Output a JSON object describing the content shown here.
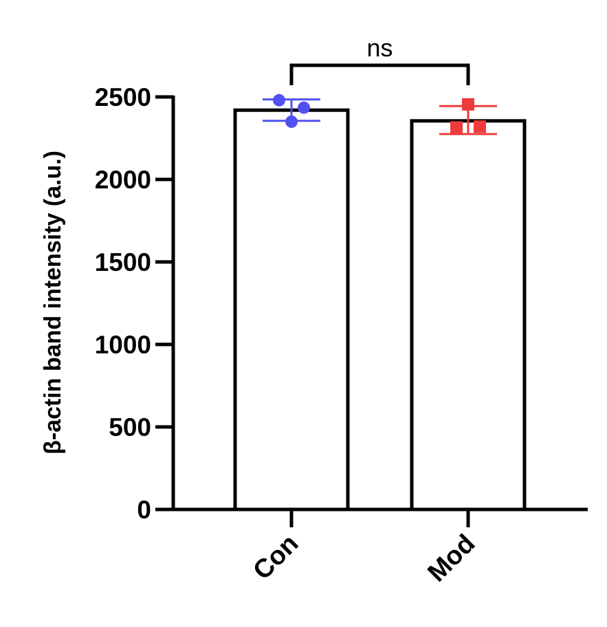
{
  "chart_data": {
    "type": "bar",
    "categories": [
      "Con",
      "Mod"
    ],
    "values": [
      2420,
      2355
    ],
    "error": [
      [
        2355,
        2485
      ],
      [
        2275,
        2445
      ]
    ],
    "points": [
      [
        2480,
        2350,
        2435
      ],
      [
        2455,
        2315,
        2320
      ]
    ],
    "point_colors": [
      "#5151F0",
      "#EE3B3B"
    ],
    "point_shapes": [
      "circle",
      "square"
    ],
    "ylabel": "β-actin band intensity (a.u.)",
    "xlabel": "",
    "ylim": [
      0,
      2500
    ],
    "yticks": [
      0,
      500,
      1000,
      1500,
      2000,
      2500
    ],
    "significance": {
      "label": "ns",
      "between": [
        "Con",
        "Mod"
      ]
    },
    "grid": false,
    "legend": "none"
  }
}
